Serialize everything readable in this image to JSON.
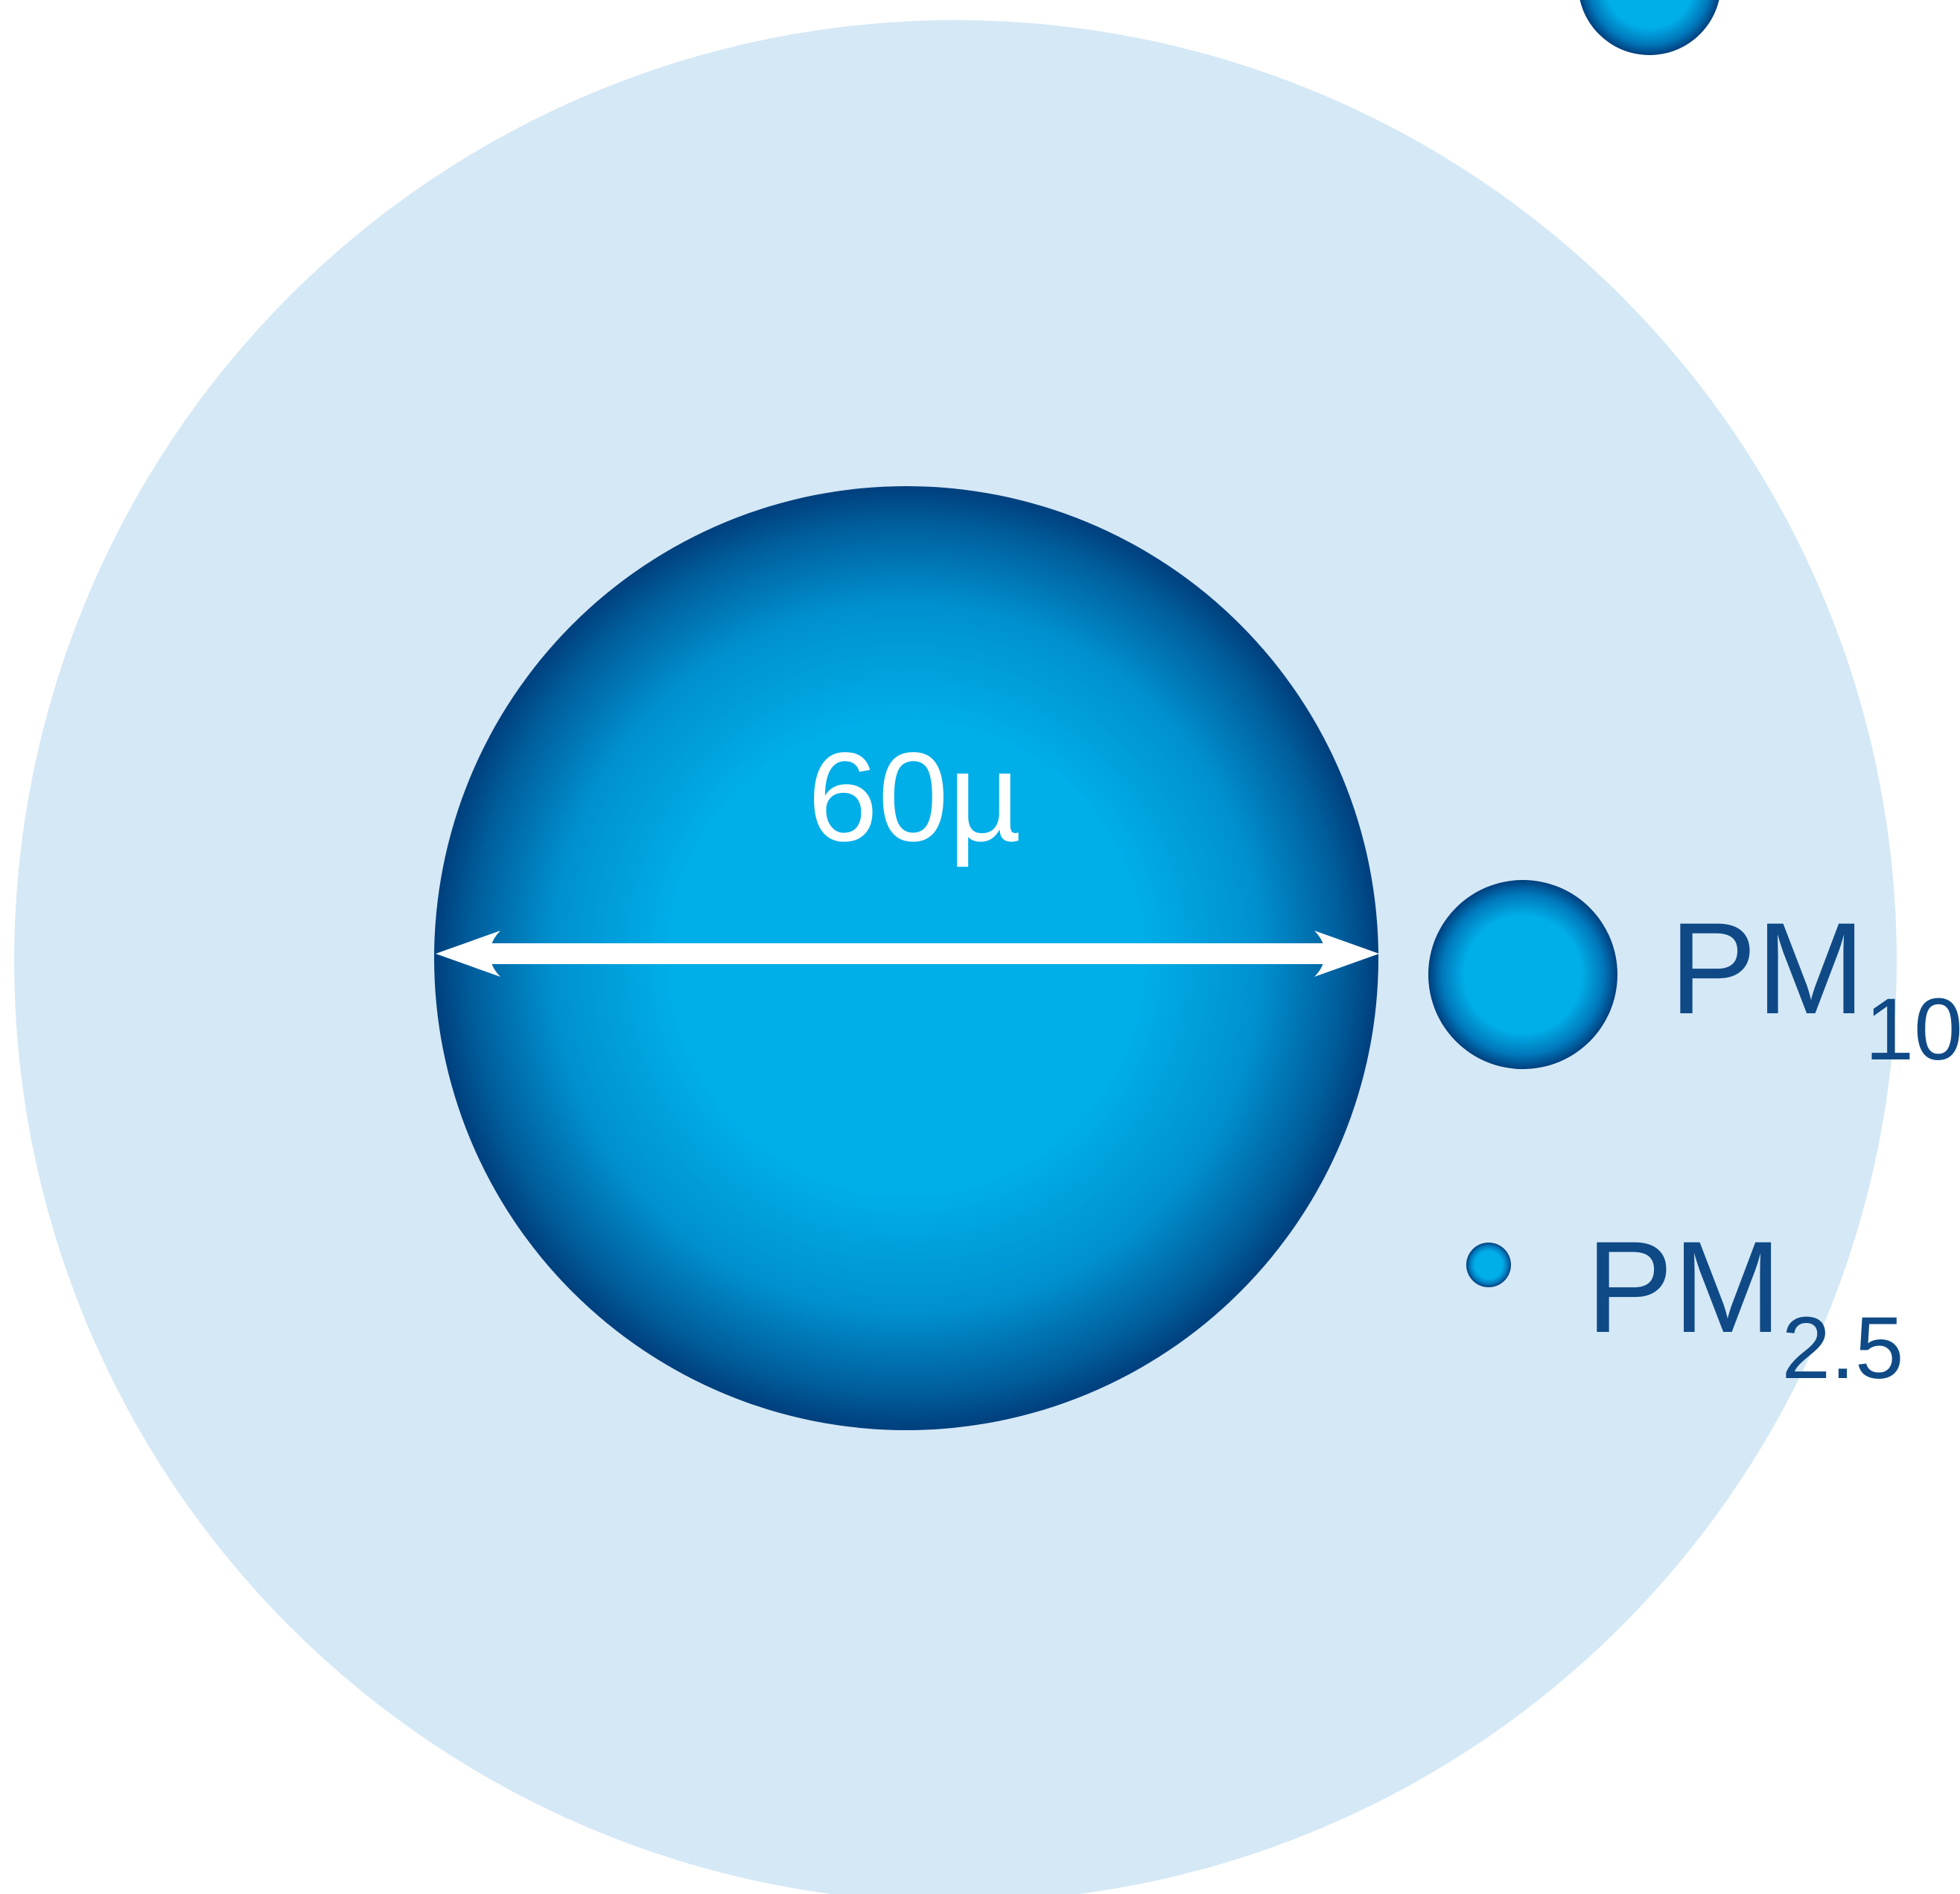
{
  "diameter_label": "60µ",
  "particles": [
    {
      "main": "PM",
      "sub": "10"
    },
    {
      "main": "PM",
      "sub": "2.5"
    }
  ],
  "colors": {
    "outer_circle": "#d5e8f6",
    "particle_center": "#00aee8",
    "particle_edge": "#003f7d",
    "arrow": "#ffffff",
    "diameter_text": "#ffffff",
    "label_text": "#0f4a86"
  }
}
